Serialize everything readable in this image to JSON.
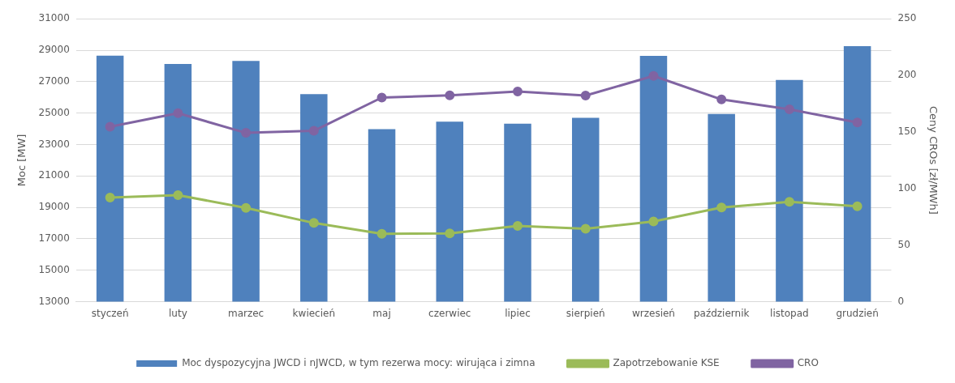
{
  "chart_data": {
    "type": "bar",
    "categories": [
      "styczeń",
      "luty",
      "marzec",
      "kwiecień",
      "maj",
      "czerwiec",
      "lipiec",
      "sierpień",
      "wrzesień",
      "październik",
      "listopad",
      "grudzień"
    ],
    "ylabel": "Moc [MW]",
    "y2label": "Ceny CROs [zł/MWh]",
    "ylim": [
      13000,
      31000
    ],
    "yticks": [
      13000,
      15000,
      17000,
      19000,
      21000,
      23000,
      25000,
      27000,
      29000,
      31000
    ],
    "y2lim": [
      0,
      250
    ],
    "y2ticks": [
      0,
      50,
      100,
      150,
      200,
      250
    ],
    "grid": "y",
    "legend": "bottom",
    "marker": "circle",
    "series": [
      {
        "name": "Moc dyspozycyjna JWCD i nJWCD, w tym rezerwa mocy: wirująca i zimna",
        "color": "#4f81bd",
        "values": [
          28650,
          28120,
          28320,
          26210,
          23980,
          24460,
          24330,
          24700,
          28640,
          24950,
          27110,
          29260
        ]
      },
      {
        "name": "Zapotrzebowanie KSE",
        "type": "line",
        "color": "#9bbb59",
        "values": [
          19630,
          19780,
          18970,
          18010,
          17320,
          17350,
          17820,
          17640,
          18110,
          18990,
          19360,
          19070
        ]
      },
      {
        "name": "CRO",
        "type": "line",
        "axis": "y2",
        "color": "#8064a2",
        "values": [
          154.6,
          166.6,
          149.2,
          151,
          180.4,
          182.4,
          185.8,
          182.2,
          199.5,
          178.7,
          170,
          158.4
        ]
      }
    ]
  }
}
